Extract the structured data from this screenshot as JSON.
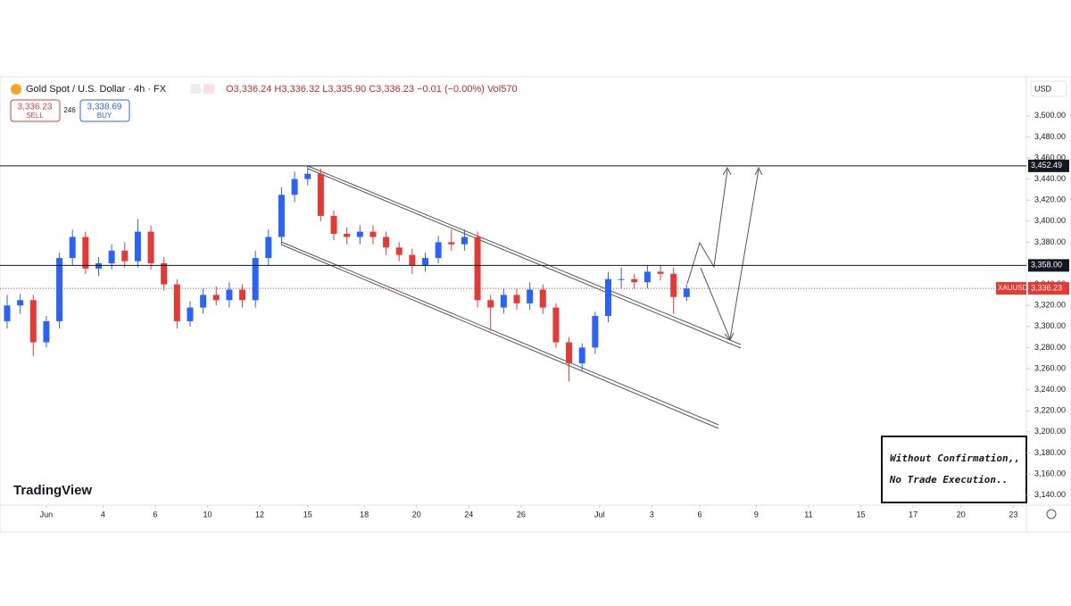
{
  "header": {
    "symbol": "Gold Spot / U.S. Dollar · 4h · FX",
    "ohlc": "O3,336.24 H3,336.32 L3,335.90 C3,336.23 −0.01 (−0.00%) Vol570",
    "sell_price": "3,336.23",
    "sell": "SELL",
    "spread": "246",
    "buy_price": "3,338.69",
    "buy": "BUY",
    "currency": "USD",
    "logo": "TradingView"
  },
  "note": [
    "Without Confirmation,,",
    "No Trade Execution.."
  ],
  "chart_data": {
    "type": "candlestick",
    "up_color": "#2962ff",
    "down_color": "#e53935",
    "x": [
      0,
      3,
      6,
      9,
      12,
      15,
      18,
      21,
      24,
      27,
      30,
      33,
      36,
      39,
      42,
      45,
      48,
      51,
      54,
      57,
      60,
      63,
      66,
      69,
      72,
      75,
      78,
      81,
      84,
      87,
      90,
      93,
      96,
      99,
      102,
      105,
      108,
      111,
      114,
      117,
      120,
      123,
      126,
      129,
      132,
      135,
      138,
      141,
      144,
      147,
      150,
      153,
      156
    ],
    "open": [
      3305,
      3320,
      3325,
      3285,
      3305,
      3365,
      3385,
      3355,
      3360,
      3372,
      3362,
      3390,
      3360,
      3340,
      3305,
      3318,
      3330,
      3325,
      3335,
      3325,
      3365,
      3385,
      3425,
      3440,
      3445,
      3405,
      3388,
      3385,
      3390,
      3385,
      3375,
      3368,
      3358,
      3365,
      3380,
      3378,
      3385,
      3325,
      3318,
      3330,
      3322,
      3335,
      3318,
      3285,
      3265,
      3280,
      3310,
      3345,
      3345,
      3342,
      3352,
      3350,
      3328
    ],
    "high": [
      3330,
      3331,
      3330,
      3310,
      3370,
      3392,
      3390,
      3366,
      3378,
      3380,
      3402,
      3396,
      3366,
      3345,
      3324,
      3336,
      3338,
      3342,
      3340,
      3372,
      3392,
      3432,
      3447,
      3452,
      3450,
      3410,
      3394,
      3396,
      3396,
      3390,
      3380,
      3374,
      3370,
      3386,
      3392,
      3392,
      3390,
      3330,
      3336,
      3336,
      3342,
      3340,
      3322,
      3290,
      3284,
      3314,
      3352,
      3356,
      3350,
      3358,
      3358,
      3356,
      3340
    ],
    "low": [
      3298,
      3312,
      3272,
      3280,
      3298,
      3358,
      3350,
      3348,
      3354,
      3356,
      3356,
      3354,
      3334,
      3298,
      3300,
      3312,
      3320,
      3318,
      3318,
      3318,
      3358,
      3378,
      3418,
      3434,
      3400,
      3382,
      3378,
      3378,
      3378,
      3368,
      3362,
      3350,
      3352,
      3360,
      3372,
      3372,
      3318,
      3296,
      3312,
      3316,
      3316,
      3312,
      3280,
      3248,
      3258,
      3274,
      3304,
      3336,
      3336,
      3336,
      3344,
      3312,
      3324
    ],
    "close": [
      3320,
      3325,
      3285,
      3305,
      3365,
      3385,
      3355,
      3360,
      3372,
      3362,
      3390,
      3360,
      3340,
      3305,
      3318,
      3330,
      3325,
      3335,
      3325,
      3365,
      3385,
      3425,
      3440,
      3445,
      3405,
      3388,
      3385,
      3390,
      3385,
      3375,
      3368,
      3358,
      3365,
      3380,
      3378,
      3385,
      3325,
      3318,
      3330,
      3322,
      3335,
      3318,
      3285,
      3265,
      3280,
      3310,
      3345,
      3345,
      3342,
      3352,
      3350,
      3328,
      3336
    ],
    "xlim": [
      0,
      234
    ],
    "ylim": [
      3116,
      3532
    ],
    "xticks": [
      {
        "value": 9,
        "label": "Jun"
      },
      {
        "value": 22,
        "label": "4"
      },
      {
        "value": 34,
        "label": "6"
      },
      {
        "value": 46,
        "label": "10"
      },
      {
        "value": 58,
        "label": "12"
      },
      {
        "value": 69,
        "label": "15"
      },
      {
        "value": 82,
        "label": "18"
      },
      {
        "value": 94,
        "label": "20"
      },
      {
        "value": 106,
        "label": "24"
      },
      {
        "value": 118,
        "label": "26"
      },
      {
        "value": 136,
        "label": "Jul"
      },
      {
        "value": 148,
        "label": "3"
      },
      {
        "value": 159,
        "label": "6"
      },
      {
        "value": 172,
        "label": "9"
      },
      {
        "value": 184,
        "label": "11"
      },
      {
        "value": 196,
        "label": "15"
      },
      {
        "value": 208,
        "label": "17"
      },
      {
        "value": 219,
        "label": "20"
      },
      {
        "value": 231,
        "label": "23"
      }
    ],
    "yticks": [
      {
        "value": 3140,
        "label": "3,140.00"
      },
      {
        "value": 3160,
        "label": "3,160.00"
      },
      {
        "value": 3180,
        "label": "3,180.00"
      },
      {
        "value": 3200,
        "label": "3,200.00"
      },
      {
        "value": 3220,
        "label": "3,220.00"
      },
      {
        "value": 3240,
        "label": "3,240.00"
      },
      {
        "value": 3260,
        "label": "3,260.00"
      },
      {
        "value": 3280,
        "label": "3,280.00"
      },
      {
        "value": 3300,
        "label": "3,300.00"
      },
      {
        "value": 3320,
        "label": "3,320.00"
      },
      {
        "value": 3340,
        "label": "3,340.00"
      },
      {
        "value": 3360,
        "label": "3,360.00"
      },
      {
        "value": 3380,
        "label": "3,380.00"
      },
      {
        "value": 3400,
        "label": "3,400.00"
      },
      {
        "value": 3420,
        "label": "3,420.00"
      },
      {
        "value": 3440,
        "label": "3,440.00"
      },
      {
        "value": 3460,
        "label": "3,460.00"
      },
      {
        "value": 3480,
        "label": "3,480.00"
      },
      {
        "value": 3500,
        "label": "3,500.00"
      }
    ],
    "levels": [
      {
        "value": 3452.49,
        "label": "3,452.49",
        "color": "#131722"
      },
      {
        "value": 3358,
        "label": "3,358.00",
        "color": "#131722"
      }
    ],
    "last_price": {
      "value": 3336.23,
      "label": "3,336.23",
      "symbol": "XAUUSD",
      "color": "#e53935"
    }
  }
}
